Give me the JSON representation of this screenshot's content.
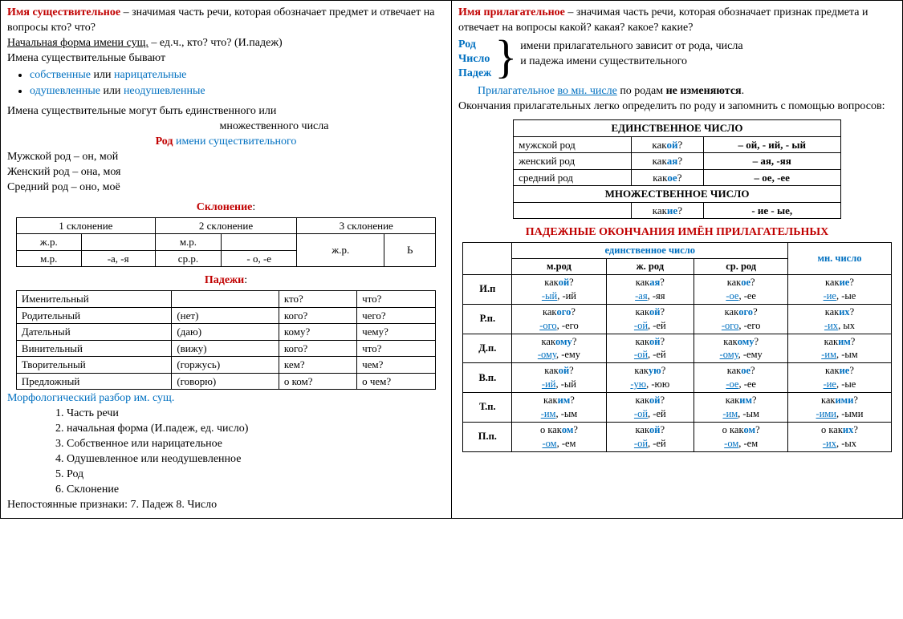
{
  "left": {
    "t1": "Имя существительное",
    "t1r": " – значимая часть речи, которая обозначает предмет и отвечает на вопросы кто? что?",
    "nf": "Начальная форма имени сущ.",
    "nfr": " – ед.ч., кто? что? (И.падеж)",
    "byv": "Имена существительные бывают",
    "li1a": "собственные",
    "li1b": " или ",
    "li1c": "нарицательные",
    "li2a": "одушевленные",
    "li2b": " или ",
    "li2c": "неодушевленные",
    "num": "Имена существительные могут быть единственного или",
    "num2": "множественного числа",
    "rod": "Род",
    "rodr": " имени существительного",
    "r1": "Мужской род – он, мой",
    "r2": "Женский род – она, моя",
    "r3": "Средний род – оно, моё",
    "skl": "Склонение",
    "sklh": [
      "1 склонение",
      "2 склонение",
      "3 склонение"
    ],
    "sklr1": [
      "ж.р.",
      "",
      "м.р.",
      "",
      "",
      ""
    ],
    "sklr2": [
      "м.р.",
      "-а, -я",
      "ср.р.",
      "- о, -е",
      "ж.р.",
      "Ь"
    ],
    "padh": "Падежи",
    "padrows": [
      [
        "Именительный",
        "",
        "кто?",
        "что?"
      ],
      [
        "Родительный",
        "(нет)",
        "кого?",
        "чего?"
      ],
      [
        "Дательный",
        "(даю)",
        "кому?",
        "чему?"
      ],
      [
        "Винительный",
        "(вижу)",
        "кого?",
        "что?"
      ],
      [
        "Творительный",
        "(горжусь)",
        "кем?",
        "чем?"
      ],
      [
        "Предложный",
        "(говорю)",
        "о ком?",
        "о чем?"
      ]
    ],
    "mr": "Морфологический разбор им. сущ.",
    "m1": "1. Часть речи",
    "m2": "2. начальная форма (И.падеж, ед. число)",
    "m3": "3. Собственное или нарицательное",
    "m4": "4. Одушевленное или неодушевленное",
    "m5": "5. Род",
    "m6": "6. Склонение",
    "np": "Непостоянные признаки:   7. Падеж      8. Число"
  },
  "right": {
    "t1": "Имя прилагательное",
    "t1r": " – значимая часть речи, которая обозначает признак предмета и отвечает на вопросы какой? какая? какое? какие?",
    "rcn1": "Род",
    "rcn2": "Число",
    "rcn3": "Падеж",
    "rcnr1": "имени прилагательного зависит от рода, числа",
    "rcnr2": "и падежа имени существительного",
    "pril": "Прилагательное ",
    "pril2": "во мн. числе",
    "pril3": " по родам ",
    "pril4": "не изменяются",
    "ok": "Окончания прилагательных легко определить по роду и запомнить с помощью вопросов:",
    "edh": "ЕДИНСТВЕННОЕ ЧИСЛО",
    "edr": [
      [
        "мужской род",
        "какой?",
        "– ой,  - ий,  - ый"
      ],
      [
        "женский род",
        "какая?",
        "– ая,  -яя"
      ],
      [
        "средний род",
        "какое?",
        "– ое, -ее"
      ]
    ],
    "mnh": "МНОЖЕСТВЕННОЕ ЧИСЛО",
    "mnr": [
      "",
      "какие?",
      "- ие - ые,"
    ],
    "poh": "ПАДЕЖНЫЕ ОКОНЧАНИЯ ИМЁН ПРИЛАГАТЕЛЬНЫХ",
    "po_ed": "единственное число",
    "po_mn": "мн. число",
    "po_cols": [
      "м.род",
      "ж. род",
      "ср. род"
    ],
    "po": [
      {
        "n": "И.п",
        "q": [
          "какой?",
          "какая?",
          "какое?",
          "какие?"
        ],
        "e": [
          "-ый, -ий",
          "-ая, -яя",
          "-ое, -ее",
          "-ие, -ые"
        ]
      },
      {
        "n": "Р.п.",
        "q": [
          "какого?",
          "какой?",
          "какого?",
          "каких?"
        ],
        "e": [
          "-ого, -его",
          "-ой, -ей",
          "-ого, -его",
          "-их, ых"
        ]
      },
      {
        "n": "Д.п.",
        "q": [
          "какому?",
          "какой?",
          "какому?",
          "каким?"
        ],
        "e": [
          "-ому, -ему",
          "-ой, -ей",
          "-ому, -ему",
          "-им, -ым"
        ]
      },
      {
        "n": "В.п.",
        "q": [
          "какой?",
          "какую?",
          "какое?",
          "какие?"
        ],
        "e": [
          "-ий, -ый",
          "-ую, -юю",
          "-ое, -ее",
          "-ие, -ые"
        ]
      },
      {
        "n": "Т.п.",
        "q": [
          "каким?",
          "какой?",
          "каким?",
          "какими?"
        ],
        "e": [
          "-им, -ым",
          "-ой, -ей",
          "-им, -ым",
          "-ими, -ыми"
        ]
      },
      {
        "n": "П.п.",
        "q": [
          "о каком?",
          "какой?",
          "о каком?",
          "о каких?"
        ],
        "e": [
          "-ом, -ем",
          "-ой, -ей",
          "-ом, -ем",
          "-их, -ых"
        ]
      }
    ]
  }
}
